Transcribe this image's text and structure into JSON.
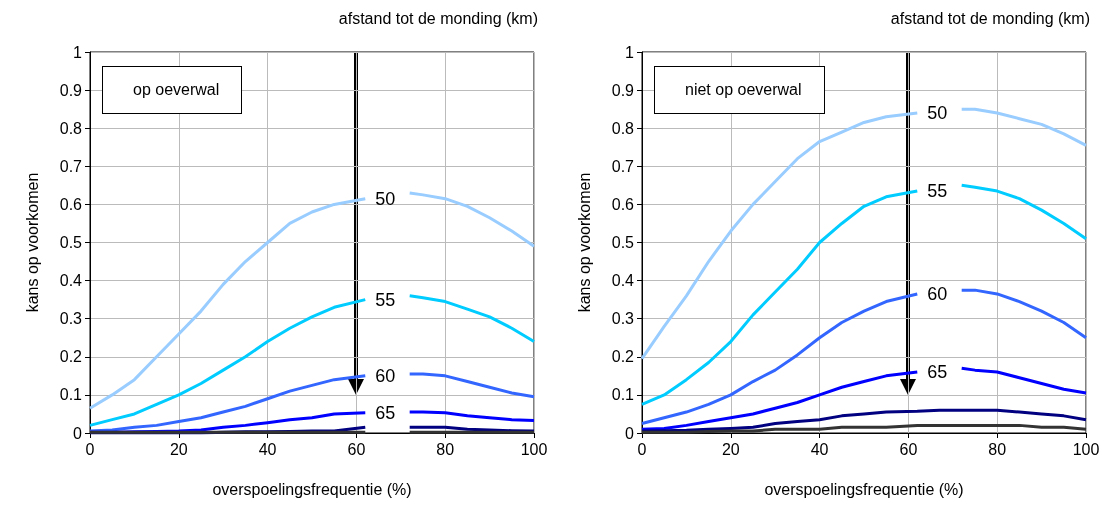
{
  "chart_data": [
    {
      "type": "line",
      "legend_title": "afstand tot de monding (km)",
      "annotations": [
        "op oeverwal"
      ],
      "xlabel": "overspoelingsfrequentie (%)",
      "ylabel": "kans op voorkomen",
      "x": [
        0,
        5,
        10,
        15,
        20,
        25,
        30,
        35,
        40,
        45,
        50,
        55,
        62,
        67,
        72,
        75,
        80,
        85,
        90,
        95,
        100
      ],
      "xlim": [
        0,
        100
      ],
      "xticks": [
        0,
        20,
        40,
        60,
        80,
        100
      ],
      "ylim": [
        0,
        1
      ],
      "yticks": [
        0,
        0.1,
        0.2,
        0.3,
        0.4,
        0.5,
        0.6,
        0.7,
        0.8,
        0.9,
        1
      ],
      "grid": true,
      "legend": false,
      "series": [
        {
          "name": "50",
          "color": "#99ccff",
          "values": [
            0.065,
            0.1,
            0.14,
            0.2,
            0.26,
            0.32,
            0.39,
            0.45,
            0.5,
            0.55,
            0.58,
            0.6,
            0.615,
            null,
            0.63,
            0.625,
            0.615,
            0.595,
            0.565,
            0.53,
            0.49
          ]
        },
        {
          "name": "55",
          "color": "#00ccff",
          "values": [
            0.02,
            0.035,
            0.05,
            0.075,
            0.1,
            0.13,
            0.165,
            0.2,
            0.24,
            0.275,
            0.305,
            0.33,
            0.35,
            null,
            0.36,
            0.355,
            0.345,
            0.325,
            0.305,
            0.275,
            0.24
          ]
        },
        {
          "name": "60",
          "color": "#3366ff",
          "values": [
            0.005,
            0.008,
            0.015,
            0.02,
            0.03,
            0.04,
            0.055,
            0.07,
            0.09,
            0.11,
            0.125,
            0.14,
            0.15,
            null,
            0.155,
            0.155,
            0.15,
            0.135,
            0.12,
            0.105,
            0.095
          ]
        },
        {
          "name": "65",
          "color": "#0000ff",
          "values": [
            0.002,
            0.002,
            0.003,
            0.004,
            0.005,
            0.008,
            0.015,
            0.02,
            0.027,
            0.035,
            0.04,
            0.05,
            0.053,
            null,
            0.055,
            0.055,
            0.053,
            0.045,
            0.04,
            0.035,
            0.033
          ]
        },
        {
          "color": "#000080",
          "values": [
            0,
            0,
            0,
            0,
            0,
            0,
            0.002,
            0.003,
            0.003,
            0.004,
            0.005,
            0.005,
            0.015,
            null,
            0.015,
            0.015,
            0.015,
            0.01,
            0.008,
            0.006,
            0.005
          ]
        },
        {
          "color": "#333333",
          "values": [
            0.002,
            0.002,
            0.002,
            0.002,
            0.002,
            0.002,
            0.002,
            0.002,
            0.002,
            0.002,
            0.002,
            0.002,
            0.002,
            null,
            0.002,
            0.002,
            0.002,
            0.002,
            0.002,
            0.002,
            0.002
          ]
        }
      ]
    },
    {
      "type": "line",
      "legend_title": "afstand tot de monding (km)",
      "annotations": [
        "niet op oeverwal"
      ],
      "xlabel": "overspoelingsfrequentie (%)",
      "ylabel": "kans op voorkomen",
      "x": [
        0,
        5,
        10,
        15,
        20,
        25,
        30,
        35,
        40,
        45,
        50,
        55,
        62,
        67,
        72,
        75,
        80,
        85,
        90,
        95,
        100
      ],
      "xlim": [
        0,
        100
      ],
      "xticks": [
        0,
        20,
        40,
        60,
        80,
        100
      ],
      "ylim": [
        0,
        1
      ],
      "yticks": [
        0,
        0.1,
        0.2,
        0.3,
        0.4,
        0.5,
        0.6,
        0.7,
        0.8,
        0.9,
        1
      ],
      "grid": true,
      "legend": false,
      "series": [
        {
          "name": "50",
          "color": "#99ccff",
          "values": [
            0.195,
            0.28,
            0.36,
            0.45,
            0.53,
            0.6,
            0.66,
            0.72,
            0.765,
            0.79,
            0.815,
            0.83,
            0.84,
            null,
            0.85,
            0.85,
            0.84,
            0.825,
            0.81,
            0.785,
            0.755
          ]
        },
        {
          "name": "55",
          "color": "#00ccff",
          "values": [
            0.075,
            0.1,
            0.14,
            0.185,
            0.24,
            0.31,
            0.37,
            0.43,
            0.5,
            0.55,
            0.595,
            0.62,
            0.635,
            null,
            0.65,
            0.645,
            0.635,
            0.615,
            0.585,
            0.55,
            0.51
          ]
        },
        {
          "name": "60",
          "color": "#3366ff",
          "values": [
            0.025,
            0.04,
            0.055,
            0.075,
            0.1,
            0.135,
            0.165,
            0.205,
            0.25,
            0.29,
            0.32,
            0.345,
            0.365,
            null,
            0.375,
            0.375,
            0.365,
            0.345,
            0.32,
            0.29,
            0.25
          ]
        },
        {
          "name": "65",
          "color": "#0000ff",
          "values": [
            0.01,
            0.012,
            0.02,
            0.03,
            0.04,
            0.05,
            0.065,
            0.08,
            0.1,
            0.12,
            0.135,
            0.15,
            0.16,
            null,
            0.17,
            0.165,
            0.16,
            0.145,
            0.13,
            0.115,
            0.105
          ]
        },
        {
          "color": "#000080",
          "values": [
            0.005,
            0.006,
            0.007,
            0.01,
            0.012,
            0.015,
            0.025,
            0.03,
            0.035,
            0.045,
            0.05,
            0.055,
            0.057,
            0.06,
            0.06,
            0.06,
            0.06,
            0.055,
            0.05,
            0.045,
            0.035
          ]
        },
        {
          "color": "#333333",
          "values": [
            0.002,
            0.002,
            0.002,
            0.004,
            0.005,
            0.005,
            0.01,
            0.01,
            0.01,
            0.015,
            0.015,
            0.015,
            0.02,
            0.02,
            0.02,
            0.02,
            0.02,
            0.02,
            0.015,
            0.015,
            0.01
          ]
        }
      ]
    }
  ]
}
